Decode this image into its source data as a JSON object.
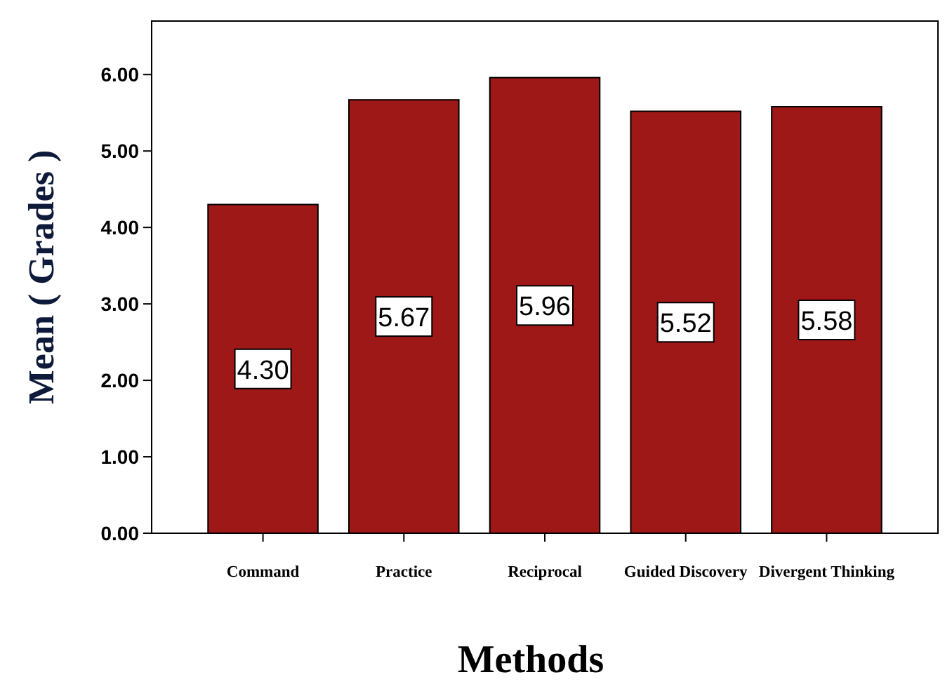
{
  "chart_data": {
    "type": "bar",
    "xlabel": "Methods",
    "ylabel": "Mean ( Grades )",
    "categories": [
      "Command",
      "Practice",
      "Reciprocal",
      "Guided Discovery",
      "Divergent Thinking"
    ],
    "values": [
      4.3,
      5.67,
      5.96,
      5.52,
      5.58
    ],
    "value_labels": [
      "4.30",
      "5.67",
      "5.96",
      "5.52",
      "5.58"
    ],
    "color": "#9e1818",
    "ylim": [
      0,
      6.7
    ],
    "yticks": [
      {
        "value": 0,
        "label": "0.00"
      },
      {
        "value": 1,
        "label": "1.00"
      },
      {
        "value": 2,
        "label": "2.00"
      },
      {
        "value": 3,
        "label": "3.00"
      },
      {
        "value": 4,
        "label": "4.00"
      },
      {
        "value": 5,
        "label": "5.00"
      },
      {
        "value": 6,
        "label": "6.00"
      }
    ],
    "grid": false
  }
}
